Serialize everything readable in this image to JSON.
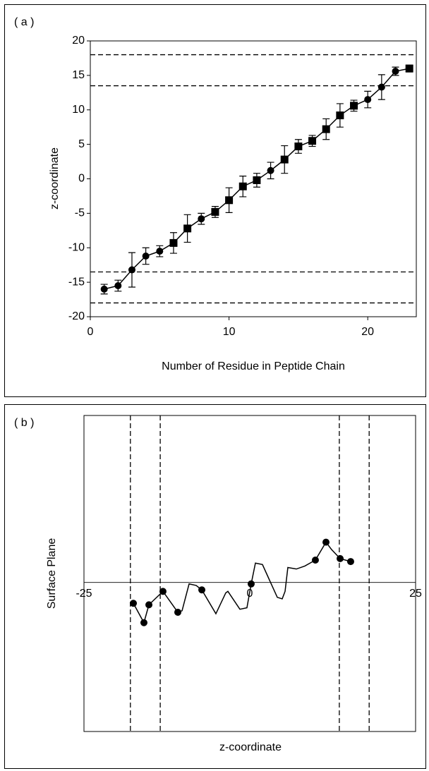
{
  "chart_data": [
    {
      "type": "line",
      "panel_label": "( a )",
      "x_label": "Number of Residue in Peptide Chain",
      "y_label": "z-coordinate",
      "xlim": [
        0,
        23.5
      ],
      "ylim": [
        -20,
        20
      ],
      "xticks": [
        0,
        10,
        20
      ],
      "yticks": [
        -20,
        -15,
        -10,
        -5,
        0,
        5,
        10,
        15,
        20
      ],
      "hlines": [
        18,
        13.5,
        -13.5,
        -18
      ],
      "series": [
        {
          "color": "#000000",
          "x": [
            1,
            2,
            3,
            4,
            5,
            6,
            7,
            8,
            9,
            10,
            11,
            12,
            13,
            14,
            15,
            16,
            17,
            18,
            19,
            20,
            21,
            22,
            23
          ],
          "values": [
            -16,
            -15.5,
            -13.2,
            -11.2,
            -10.5,
            -9.3,
            -7.2,
            -5.8,
            -4.8,
            -3.1,
            -1.1,
            -0.2,
            1.2,
            2.8,
            4.7,
            5.5,
            7.2,
            9.2,
            10.6,
            11.5,
            13.3,
            15.6,
            16
          ],
          "errors": [
            0.7,
            0.8,
            2.5,
            1.2,
            0.8,
            1.5,
            2,
            0.8,
            0.8,
            1.8,
            1.5,
            1,
            1.2,
            2,
            1,
            0.8,
            1.5,
            1.7,
            0.8,
            1.2,
            1.8,
            0.6,
            0.5
          ],
          "markers": [
            "circle",
            "circle",
            "circle",
            "circle",
            "circle",
            "square",
            "square",
            "circle",
            "square",
            "square",
            "square",
            "square",
            "circle",
            "square",
            "square",
            "square",
            "square",
            "square",
            "square",
            "circle",
            "circle",
            "circle",
            "square"
          ]
        }
      ]
    },
    {
      "type": "line",
      "panel_label": "( b )",
      "x_label": "z-coordinate",
      "y_label": "Surface Plane",
      "xlim": [
        -25,
        25
      ],
      "ylim": [
        -1,
        1.12
      ],
      "xticks": [
        -25,
        0,
        25
      ],
      "vlines": [
        -18,
        -13.5,
        13.5,
        18
      ],
      "series": [
        {
          "style": "line",
          "color": "#000000",
          "x": [
            -17.55,
            -15.96,
            -15.21,
            -13.09,
            -10.85,
            -10.21,
            -9.15,
            -8.09,
            -7.23,
            -5.11,
            -3.62,
            -3.3,
            -1.49,
            -0.43,
            0.21,
            0.85,
            1.91,
            4.15,
            4.89,
            5.32,
            5.74,
            7.02,
            8.3,
            9.89,
            11.49,
            12.34,
            13.62,
            15.21
          ],
          "values": [
            -0.14,
            -0.27,
            -0.15,
            -0.06,
            -0.2,
            -0.19,
            -0.01,
            -0.02,
            -0.05,
            -0.21,
            -0.07,
            -0.06,
            -0.18,
            -0.17,
            -0.01,
            0.13,
            0.12,
            -0.1,
            -0.11,
            -0.06,
            0.1,
            0.09,
            0.11,
            0.15,
            0.27,
            0.22,
            0.16,
            0.14
          ]
        },
        {
          "style": "markers",
          "color": "#000000",
          "x": [
            -17.55,
            -15.96,
            -15.21,
            -13.09,
            -10.85,
            -7.23,
            0.21,
            9.89,
            11.49,
            13.62,
            15.21
          ],
          "values": [
            -0.14,
            -0.27,
            -0.15,
            -0.06,
            -0.2,
            -0.05,
            -0.01,
            0.15,
            0.27,
            0.16,
            0.14
          ]
        }
      ]
    }
  ]
}
